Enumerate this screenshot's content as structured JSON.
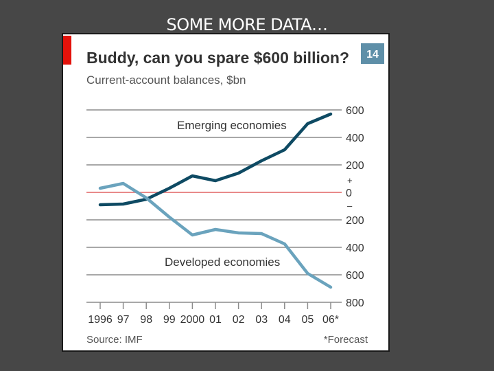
{
  "slide": {
    "title": "SOME MORE DATA…"
  },
  "colors": {
    "background": "#474747",
    "accent_red": "#e3120b",
    "emerging": "#0e4a63",
    "developed": "#6aa3bd",
    "zero_line": "#e88a8a",
    "badge": "#5e8fa8",
    "text": "#333333"
  },
  "chart_data": {
    "type": "line",
    "title": "Buddy, can you spare $600 billion?",
    "subtitle": "Current-account balances, $bn",
    "badge": "14",
    "categories": [
      "1996",
      "97",
      "98",
      "99",
      "2000",
      "01",
      "02",
      "03",
      "04",
      "05",
      "06*"
    ],
    "series": [
      {
        "name": "Emerging economies",
        "values": [
          -90,
          -85,
          -50,
          30,
          120,
          85,
          140,
          230,
          310,
          500,
          570
        ]
      },
      {
        "name": "Developed economies",
        "values": [
          30,
          65,
          -40,
          -180,
          -310,
          -270,
          -295,
          -300,
          -375,
          -590,
          -690
        ]
      }
    ],
    "ylim": [
      -800,
      600
    ],
    "yticks": [
      {
        "value": 600,
        "label": "600"
      },
      {
        "value": 400,
        "label": "400"
      },
      {
        "value": 200,
        "label": "200"
      },
      {
        "value": 0,
        "label": "0"
      },
      {
        "value": -200,
        "label": "200"
      },
      {
        "value": -400,
        "label": "400"
      },
      {
        "value": -600,
        "label": "600"
      },
      {
        "value": -800,
        "label": "800"
      }
    ],
    "plus_sign": "+",
    "minus_sign": "–",
    "source": "Source: IMF",
    "footnote": "*Forecast"
  }
}
